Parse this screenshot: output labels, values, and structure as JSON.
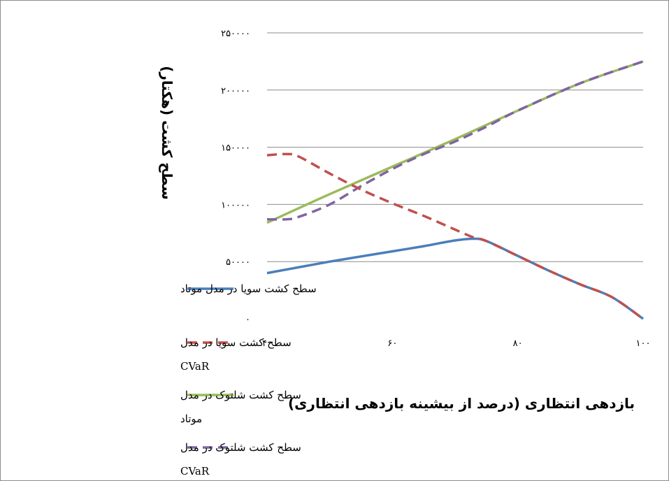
{
  "chart_data": {
    "type": "line",
    "xlabel": "بازدهی انتظاری (درصد از بیشینه بازدهی انتظاری)",
    "ylabel": "سطح کشت (هکتار)",
    "xlim": [
      40,
      100
    ],
    "ylim": [
      0,
      250000
    ],
    "x_ticks": [
      40,
      60,
      80,
      100
    ],
    "x_tick_labels": [
      "۴۰",
      "۶۰",
      "۸۰",
      "۱۰۰"
    ],
    "y_ticks": [
      0,
      50000,
      100000,
      150000,
      200000,
      250000
    ],
    "y_tick_labels": [
      "۰",
      "۵۰۰۰۰",
      "۱۰۰۰۰۰",
      "۱۵۰۰۰۰",
      "۲۰۰۰۰۰",
      "۲۵۰۰۰۰"
    ],
    "grid": true,
    "legend_position": "left",
    "series": [
      {
        "name": "سطح کشت سویا در مدل موتاد",
        "legend_lines": [
          "سطح کشت سویا در مدل موتاد"
        ],
        "color": "#4a7ebb",
        "dash": "solid",
        "x": [
          40,
          45,
          50,
          55,
          60,
          65,
          70,
          73,
          75,
          80,
          85,
          90,
          95,
          100
        ],
        "y": [
          40000,
          45000,
          50000,
          54500,
          59000,
          63500,
          68500,
          70000,
          68000,
          55000,
          42000,
          30000,
          19000,
          0
        ]
      },
      {
        "name": "سطح کشت سویا در مدل CVaR",
        "legend_lines": [
          "سطح کشت سویا در مدل",
          "CVaR"
        ],
        "color": "#c0504d",
        "dash": "dashed",
        "x": [
          40,
          43,
          45,
          50,
          55,
          60,
          65,
          70,
          73,
          75,
          80,
          85,
          90,
          95,
          100
        ],
        "y": [
          143000,
          144000,
          142000,
          127000,
          113000,
          101000,
          90000,
          78000,
          71000,
          68000,
          55000,
          42000,
          30000,
          19000,
          0
        ]
      },
      {
        "name": "سطح کشت شلتوک در مدل موتاد",
        "legend_lines": [
          "سطح کشت شلتوک در مدل",
          "موتاد"
        ],
        "color": "#9bbb59",
        "dash": "solid",
        "x": [
          40,
          50,
          60,
          70,
          80,
          90,
          100
        ],
        "y": [
          84000,
          109000,
          133000,
          157000,
          182000,
          206000,
          225000
        ]
      },
      {
        "name": "سطح کشت شلتوک در مدل CVaR",
        "legend_lines": [
          "سطح کشت شلتوک در مدل",
          "CVaR"
        ],
        "color": "#8064a2",
        "dash": "dashed",
        "x": [
          40,
          43,
          45,
          50,
          55,
          60,
          65,
          70,
          75,
          80,
          90,
          100
        ],
        "y": [
          87000,
          87000,
          89000,
          100000,
          116000,
          131000,
          144000,
          155000,
          168000,
          182000,
          206000,
          225000
        ]
      }
    ]
  }
}
